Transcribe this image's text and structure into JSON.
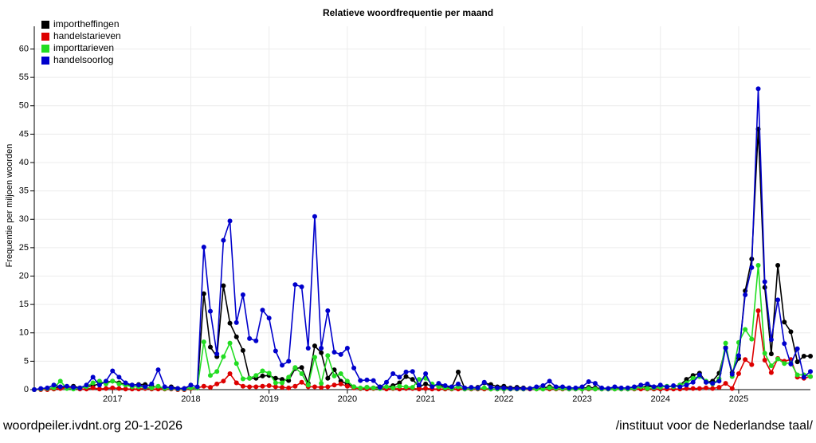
{
  "chart_data": {
    "type": "line",
    "title": "Relatieve woordfrequentie per maand",
    "ylabel": "Frequentie per miljoen woorden",
    "footer_left": "woordpeiler.ivdnt.org 20-1-2026",
    "footer_right": "/instituut voor de Nederlandse taal/",
    "grid": true,
    "legend": "top-left",
    "ylim": [
      0,
      64
    ],
    "yticks": [
      0,
      5,
      10,
      15,
      20,
      25,
      30,
      35,
      40,
      45,
      50,
      55,
      60
    ],
    "categories": [
      null,
      null,
      null,
      null,
      null,
      null,
      null,
      null,
      null,
      null,
      null,
      null,
      "2017",
      null,
      null,
      null,
      null,
      null,
      null,
      null,
      null,
      null,
      null,
      null,
      "2018",
      null,
      null,
      null,
      null,
      null,
      null,
      null,
      null,
      null,
      null,
      null,
      "2019",
      null,
      null,
      null,
      null,
      null,
      null,
      null,
      null,
      null,
      null,
      null,
      "2020",
      null,
      null,
      null,
      null,
      null,
      null,
      null,
      null,
      null,
      null,
      null,
      "2021",
      null,
      null,
      null,
      null,
      null,
      null,
      null,
      null,
      null,
      null,
      null,
      "2022",
      null,
      null,
      null,
      null,
      null,
      null,
      null,
      null,
      null,
      null,
      null,
      "2023",
      null,
      null,
      null,
      null,
      null,
      null,
      null,
      null,
      null,
      null,
      null,
      "2024",
      null,
      null,
      null,
      null,
      null,
      null,
      null,
      null,
      null,
      null,
      null,
      "2025",
      null,
      null,
      null,
      null,
      null,
      null,
      null,
      null,
      null,
      null,
      null
    ],
    "series": [
      {
        "name": "importheffingen",
        "color": "#000000",
        "values": [
          0,
          0.1,
          0.2,
          0.3,
          0.5,
          0.4,
          0.6,
          0.3,
          0.5,
          0.7,
          1,
          1.3,
          1.5,
          1.2,
          0.9,
          0.8,
          0.9,
          0.9,
          0.6,
          0.4,
          0.3,
          0.5,
          0.2,
          0.2,
          0.3,
          0.3,
          16.9,
          7.5,
          5.8,
          18.3,
          11.7,
          9.3,
          6.9,
          2,
          2,
          2.4,
          2.5,
          2,
          1.8,
          1.6,
          3.7,
          3.9,
          1.1,
          7.7,
          6.5,
          2,
          3.5,
          1.5,
          1,
          0.5,
          0.2,
          0.4,
          0.3,
          0.5,
          0.4,
          0.7,
          1.2,
          2.3,
          1.8,
          0.5,
          1,
          0.6,
          0.8,
          0.5,
          0.4,
          3.1,
          0.2,
          0.3,
          0.4,
          1.2,
          0.9,
          0.5,
          0.6,
          0.3,
          0.4,
          0.3,
          0.2,
          0.2,
          0.3,
          0.5,
          0.3,
          0.4,
          0.3,
          0.2,
          0.2,
          0.4,
          0.3,
          0.2,
          0.2,
          0.3,
          0.2,
          0.3,
          0.4,
          0.4,
          0.6,
          0.5,
          0.6,
          0.5,
          0.6,
          0.8,
          1.8,
          2.5,
          2.9,
          1.3,
          1.5,
          2.9,
          7.4,
          3,
          5.5,
          17.4,
          23,
          45.9,
          18,
          6.3,
          21.9,
          11.9,
          10.2,
          4.9,
          5.9,
          5.9
        ]
      },
      {
        "name": "handelstarieven",
        "color": "#dd0000",
        "values": [
          0,
          0,
          0,
          0.1,
          0.2,
          0.3,
          0.2,
          0.1,
          0.1,
          0.3,
          0.1,
          0.2,
          0.3,
          0.2,
          0.1,
          0.1,
          0.1,
          0.2,
          0.1,
          0.1,
          0.1,
          0.1,
          0,
          0,
          0.2,
          0.3,
          0.6,
          0.4,
          1,
          1.5,
          2.8,
          1.2,
          0.6,
          0.5,
          0.5,
          0.6,
          0.7,
          0.5,
          0.4,
          0.3,
          0.6,
          1.3,
          0.5,
          0.5,
          0.4,
          0.5,
          0.8,
          1,
          0.6,
          0.3,
          0.2,
          0.1,
          0.2,
          0.2,
          0.1,
          0.2,
          0.1,
          0.2,
          0.2,
          0.1,
          0.2,
          0.1,
          0.1,
          0.1,
          0.1,
          0.1,
          0.1,
          0.1,
          0.1,
          0.1,
          0.1,
          0.1,
          0.1,
          0.1,
          0.1,
          0.1,
          0.1,
          0.1,
          0.1,
          0.1,
          0.1,
          0.1,
          0.1,
          0.1,
          0.1,
          0.1,
          0.1,
          0.1,
          0.1,
          0.1,
          0.1,
          0.1,
          0.1,
          0.1,
          0.1,
          0.1,
          0.1,
          0.1,
          0.1,
          0.1,
          0.2,
          0.2,
          0.2,
          0.3,
          0.2,
          0.4,
          1.1,
          0.2,
          2.8,
          5.3,
          4.4,
          13.9,
          5.2,
          3,
          5.5,
          5,
          5.3,
          2.2,
          2,
          2.3
        ]
      },
      {
        "name": "importtarieven",
        "color": "#22dd22",
        "values": [
          0,
          0.1,
          0.2,
          0.3,
          1.5,
          0.2,
          0.1,
          0.3,
          0.5,
          1.2,
          1.5,
          1,
          1.5,
          1,
          0.8,
          0.5,
          0.5,
          0.4,
          0.3,
          0.6,
          0.2,
          0.2,
          0.1,
          0.1,
          0.3,
          0.3,
          8.4,
          2.5,
          3.2,
          5.8,
          8.2,
          4.6,
          1.9,
          2,
          2.5,
          3.3,
          2.9,
          1.2,
          1.2,
          2.2,
          3.9,
          2.8,
          0.8,
          5.7,
          1.1,
          6,
          2.4,
          2.8,
          1.5,
          0.5,
          0.3,
          0.4,
          0.3,
          0.2,
          0.5,
          0.3,
          0.6,
          0.5,
          0.4,
          1.8,
          2,
          1,
          0.5,
          0.3,
          0.2,
          0.5,
          0.1,
          0.2,
          0.2,
          0.3,
          0.1,
          0.1,
          0.1,
          0.1,
          0.1,
          0.1,
          0.2,
          0.1,
          0.1,
          0.3,
          0.2,
          0.2,
          0.1,
          0.1,
          0.1,
          0.2,
          0.1,
          0.1,
          0.1,
          0.1,
          0.1,
          0.1,
          0.2,
          0.5,
          0.2,
          0.3,
          0.4,
          0.6,
          0.5,
          0.8,
          1.2,
          2,
          2.3,
          1.5,
          1,
          1.9,
          8.2,
          2.3,
          8.3,
          10.6,
          8.9,
          21.9,
          6.4,
          4.2,
          5.4,
          4.6,
          4.7,
          2.6,
          2.6,
          2.3
        ]
      },
      {
        "name": "handelsoorlog",
        "color": "#0000cc",
        "values": [
          0,
          0.2,
          0.3,
          0.8,
          0.5,
          0.6,
          0.4,
          0.3,
          0.8,
          2.2,
          0.8,
          1.5,
          3.3,
          2.2,
          1.2,
          0.8,
          0.8,
          0.5,
          1,
          3.5,
          0.5,
          0.3,
          0.2,
          0.2,
          0.8,
          0.5,
          25.1,
          13.8,
          6.3,
          26.3,
          29.7,
          11.8,
          16.7,
          9,
          8.6,
          14,
          12.6,
          6.8,
          4.3,
          5,
          18.5,
          18.1,
          7.3,
          30.5,
          7.3,
          13.9,
          6.6,
          6.2,
          7.3,
          3.8,
          1.6,
          1.7,
          1.6,
          0.4,
          1.3,
          2.8,
          2.2,
          3.1,
          3.2,
          0.8,
          2.8,
          0.5,
          1.1,
          0.7,
          0.5,
          1,
          0.3,
          0.4,
          0.3,
          1.3,
          0.4,
          0.3,
          0.3,
          0.2,
          0.2,
          0.2,
          0.2,
          0.5,
          0.7,
          1.5,
          0.5,
          0.5,
          0.3,
          0.3,
          0.5,
          1.4,
          1.1,
          0.3,
          0.2,
          0.5,
          0.3,
          0.3,
          0.5,
          0.8,
          1,
          0.5,
          0.8,
          0.5,
          0.7,
          0.5,
          0.8,
          1.3,
          2.6,
          1.3,
          1.1,
          1.5,
          7.3,
          2.7,
          6,
          16.7,
          21.5,
          53,
          19,
          8.8,
          15.8,
          8.1,
          4.5,
          7.2,
          2.2,
          3.2
        ]
      }
    ]
  }
}
